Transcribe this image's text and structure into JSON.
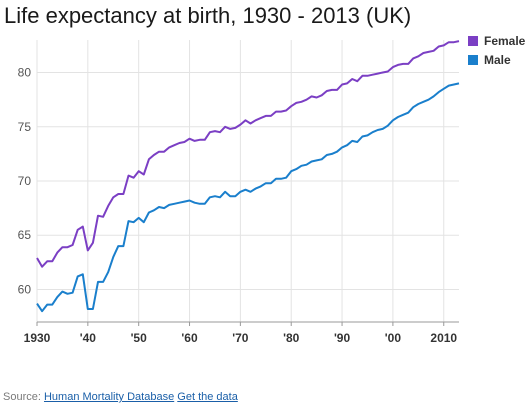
{
  "title": "Life expectancy at birth, 1930 - 2013 (UK)",
  "colors": {
    "female": "#7b3fc4",
    "male": "#1a7fcc",
    "grid": "#e3e3e3"
  },
  "source": {
    "prefix": "Source:",
    "database_link": "Human Mortality Database",
    "data_link": "Get the data"
  },
  "chart_data": {
    "type": "line",
    "title": "Life expectancy at birth, 1930 - 2013 (UK)",
    "xlabel": "",
    "ylabel": "",
    "xlim": [
      1930,
      2013
    ],
    "ylim": [
      57,
      83
    ],
    "x_ticks": [
      1930,
      1940,
      1950,
      1960,
      1970,
      1980,
      1990,
      2000,
      2010
    ],
    "x_tick_labels": [
      "1930",
      "'40",
      "'50",
      "'60",
      "'70",
      "'80",
      "'90",
      "'00",
      "2010"
    ],
    "y_ticks": [
      60,
      65,
      70,
      75,
      80
    ],
    "y_tick_labels": [
      "60",
      "65",
      "70",
      "75",
      "80"
    ],
    "grid": true,
    "legend_position": "top-right",
    "series": [
      {
        "name": "Female",
        "x": [
          1930,
          1931,
          1932,
          1933,
          1934,
          1935,
          1936,
          1937,
          1938,
          1939,
          1940,
          1941,
          1942,
          1943,
          1944,
          1945,
          1946,
          1947,
          1948,
          1949,
          1950,
          1951,
          1952,
          1953,
          1954,
          1955,
          1956,
          1957,
          1958,
          1959,
          1960,
          1961,
          1962,
          1963,
          1964,
          1965,
          1966,
          1967,
          1968,
          1969,
          1970,
          1971,
          1972,
          1973,
          1974,
          1975,
          1976,
          1977,
          1978,
          1979,
          1980,
          1981,
          1982,
          1983,
          1984,
          1985,
          1986,
          1987,
          1988,
          1989,
          1990,
          1991,
          1992,
          1993,
          1994,
          1995,
          1996,
          1997,
          1998,
          1999,
          2000,
          2001,
          2002,
          2003,
          2004,
          2005,
          2006,
          2007,
          2008,
          2009,
          2010,
          2011,
          2012,
          2013
        ],
        "values": [
          62.9,
          62.1,
          62.6,
          62.6,
          63.4,
          63.9,
          63.9,
          64.1,
          65.5,
          65.8,
          63.6,
          64.3,
          66.8,
          66.7,
          67.7,
          68.5,
          68.8,
          68.8,
          70.5,
          70.3,
          70.9,
          70.6,
          72.0,
          72.4,
          72.7,
          72.7,
          73.1,
          73.3,
          73.5,
          73.6,
          73.9,
          73.7,
          73.8,
          73.8,
          74.5,
          74.6,
          74.5,
          75.0,
          74.8,
          74.9,
          75.2,
          75.6,
          75.3,
          75.6,
          75.8,
          76.0,
          76.0,
          76.4,
          76.4,
          76.5,
          76.9,
          77.2,
          77.3,
          77.5,
          77.8,
          77.7,
          77.9,
          78.3,
          78.4,
          78.4,
          78.9,
          79.0,
          79.4,
          79.2,
          79.7,
          79.7,
          79.8,
          79.9,
          80.0,
          80.1,
          80.5,
          80.7,
          80.8,
          80.8,
          81.3,
          81.5,
          81.8,
          81.9,
          82.0,
          82.4,
          82.5,
          82.8,
          82.8,
          82.9
        ]
      },
      {
        "name": "Male",
        "x": [
          1930,
          1931,
          1932,
          1933,
          1934,
          1935,
          1936,
          1937,
          1938,
          1939,
          1940,
          1941,
          1942,
          1943,
          1944,
          1945,
          1946,
          1947,
          1948,
          1949,
          1950,
          1951,
          1952,
          1953,
          1954,
          1955,
          1956,
          1957,
          1958,
          1959,
          1960,
          1961,
          1962,
          1963,
          1964,
          1965,
          1966,
          1967,
          1968,
          1969,
          1970,
          1971,
          1972,
          1973,
          1974,
          1975,
          1976,
          1977,
          1978,
          1979,
          1980,
          1981,
          1982,
          1983,
          1984,
          1985,
          1986,
          1987,
          1988,
          1989,
          1990,
          1991,
          1992,
          1993,
          1994,
          1995,
          1996,
          1997,
          1998,
          1999,
          2000,
          2001,
          2002,
          2003,
          2004,
          2005,
          2006,
          2007,
          2008,
          2009,
          2010,
          2011,
          2012,
          2013
        ],
        "values": [
          58.7,
          58.0,
          58.6,
          58.6,
          59.3,
          59.8,
          59.6,
          59.7,
          61.2,
          61.4,
          58.2,
          58.2,
          60.7,
          60.7,
          61.6,
          63.0,
          64.0,
          64.0,
          66.3,
          66.2,
          66.6,
          66.2,
          67.1,
          67.3,
          67.6,
          67.5,
          67.8,
          67.9,
          68.0,
          68.1,
          68.2,
          68.0,
          67.9,
          67.9,
          68.5,
          68.6,
          68.5,
          69.0,
          68.6,
          68.6,
          69.0,
          69.2,
          69.0,
          69.3,
          69.5,
          69.8,
          69.8,
          70.2,
          70.2,
          70.3,
          70.9,
          71.1,
          71.4,
          71.5,
          71.8,
          71.9,
          72.0,
          72.4,
          72.5,
          72.7,
          73.1,
          73.3,
          73.7,
          73.6,
          74.1,
          74.2,
          74.5,
          74.7,
          74.8,
          75.1,
          75.6,
          75.9,
          76.1,
          76.3,
          76.8,
          77.1,
          77.3,
          77.5,
          77.8,
          78.2,
          78.5,
          78.8,
          78.9,
          79.0
        ]
      }
    ]
  }
}
